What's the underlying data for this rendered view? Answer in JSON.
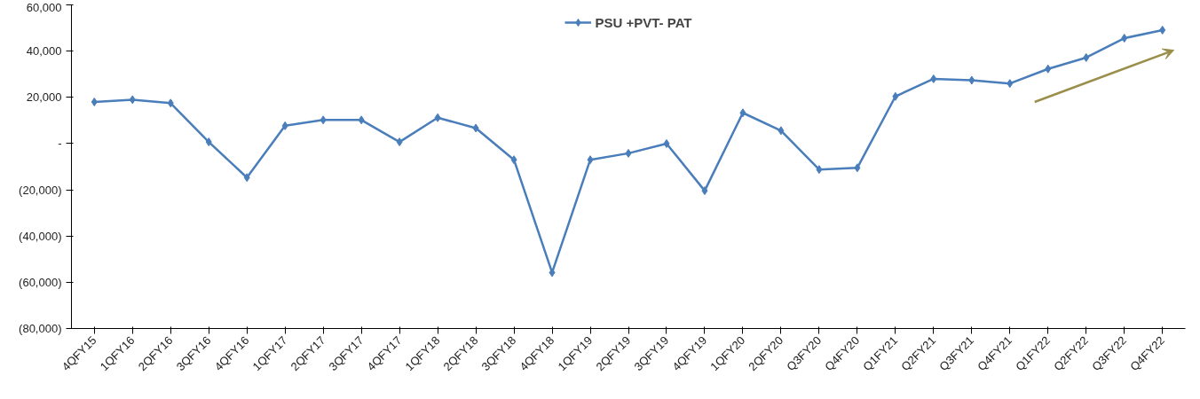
{
  "chart_data": {
    "type": "line",
    "categories": [
      "4QFY15",
      "1QFY16",
      "2QFY16",
      "3QFY16",
      "4QFY16",
      "1QFY17",
      "2QFY17",
      "3QFY17",
      "4QFY17",
      "1QFY18",
      "2QFY18",
      "3QFY18",
      "4QFY18",
      "1QFY19",
      "2QFY19",
      "3QFY19",
      "4QFY19",
      "1QFY20",
      "2QFY20",
      "Q3FY20",
      "Q4FY20",
      "Q1FY21",
      "Q2FY21",
      "Q3FY21",
      "Q4FY21",
      "Q1FY22",
      "Q2FY22",
      "Q3FY22",
      "Q4FY22"
    ],
    "series": [
      {
        "name": "PSU +PVT- PAT",
        "color": "#4a7ebb",
        "values": [
          18000,
          19000,
          17500,
          700,
          -14700,
          7700,
          10200,
          10200,
          700,
          11200,
          6700,
          -7000,
          -55800,
          -7000,
          -4200,
          0,
          -20400,
          13300,
          5600,
          -11200,
          -10500,
          20400,
          28000,
          27400,
          26000,
          32300,
          37200,
          45600,
          49100
        ]
      }
    ],
    "ylim": [
      -80000,
      60000
    ],
    "yticks": [
      {
        "value": -80000,
        "label": "(80,000)"
      },
      {
        "value": -60000,
        "label": "(60,000)"
      },
      {
        "value": -40000,
        "label": "(40,000)"
      },
      {
        "value": -20000,
        "label": "(20,000)"
      },
      {
        "value": 0,
        "label": "-"
      },
      {
        "value": 20000,
        "label": "20,000"
      },
      {
        "value": 40000,
        "label": "40,000"
      },
      {
        "value": 60000,
        "label": "60,000"
      }
    ],
    "grid": false,
    "legend": "top",
    "marker": "diamond",
    "line_style": "solid"
  }
}
